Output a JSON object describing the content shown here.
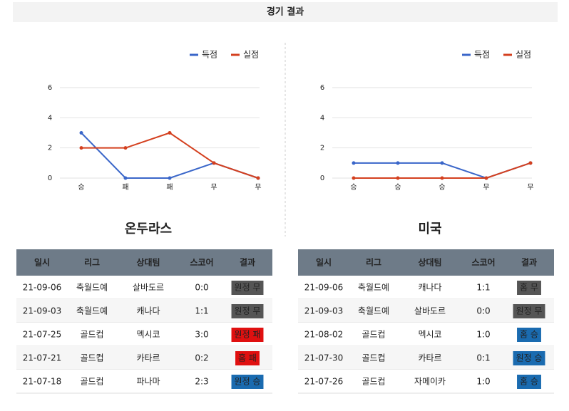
{
  "header": {
    "title": "경기 결과"
  },
  "chart_data": [
    {
      "type": "line",
      "categories": [
        "승",
        "패",
        "패",
        "무",
        "무"
      ],
      "series": [
        {
          "name": "득점",
          "color": "#3a66c9",
          "values": [
            3,
            0,
            0,
            1,
            0
          ]
        },
        {
          "name": "실점",
          "color": "#d4401f",
          "values": [
            2,
            2,
            3,
            1,
            0
          ]
        }
      ],
      "ylim": [
        0,
        6
      ],
      "yticks": [
        0,
        2,
        4,
        6
      ],
      "grid": true,
      "legend": "top-right"
    },
    {
      "type": "line",
      "categories": [
        "승",
        "승",
        "승",
        "무",
        "무"
      ],
      "series": [
        {
          "name": "득점",
          "color": "#3a66c9",
          "values": [
            1,
            1,
            1,
            0,
            1
          ]
        },
        {
          "name": "실점",
          "color": "#d4401f",
          "values": [
            0,
            0,
            0,
            0,
            1
          ]
        }
      ],
      "ylim": [
        0,
        6
      ],
      "yticks": [
        0,
        2,
        4,
        6
      ],
      "grid": true,
      "legend": "top-right"
    }
  ],
  "teams": [
    {
      "name": "온두라스",
      "table": {
        "columns": [
          "일시",
          "리그",
          "상대팀",
          "스코어",
          "결과"
        ],
        "rows": [
          [
            "21-09-06",
            "축월드예",
            "살바도르",
            "0:0",
            "원정 무"
          ],
          [
            "21-09-03",
            "축월드예",
            "캐나다",
            "1:1",
            "원정 무"
          ],
          [
            "21-07-25",
            "골드컵",
            "멕시코",
            "3:0",
            "원정 패"
          ],
          [
            "21-07-21",
            "골드컵",
            "카타르",
            "0:2",
            "홈 패"
          ],
          [
            "21-07-18",
            "골드컵",
            "파나마",
            "2:3",
            "원정 승"
          ]
        ],
        "result_colors": [
          "#555555",
          "#555555",
          "#e01010",
          "#e01010",
          "#1a6bb0"
        ]
      }
    },
    {
      "name": "미국",
      "table": {
        "columns": [
          "일시",
          "리그",
          "상대팀",
          "스코어",
          "결과"
        ],
        "rows": [
          [
            "21-09-06",
            "축월드예",
            "캐나다",
            "1:1",
            "홈 무"
          ],
          [
            "21-09-03",
            "축월드예",
            "살바도르",
            "0:0",
            "원정 무"
          ],
          [
            "21-08-02",
            "골드컵",
            "멕시코",
            "1:0",
            "홈 승"
          ],
          [
            "21-07-30",
            "골드컵",
            "카타르",
            "0:1",
            "원정 승"
          ],
          [
            "21-07-26",
            "골드컵",
            "자메이카",
            "1:0",
            "홈 승"
          ]
        ],
        "result_colors": [
          "#555555",
          "#555555",
          "#1a6bb0",
          "#1a6bb0",
          "#1a6bb0"
        ]
      }
    }
  ]
}
